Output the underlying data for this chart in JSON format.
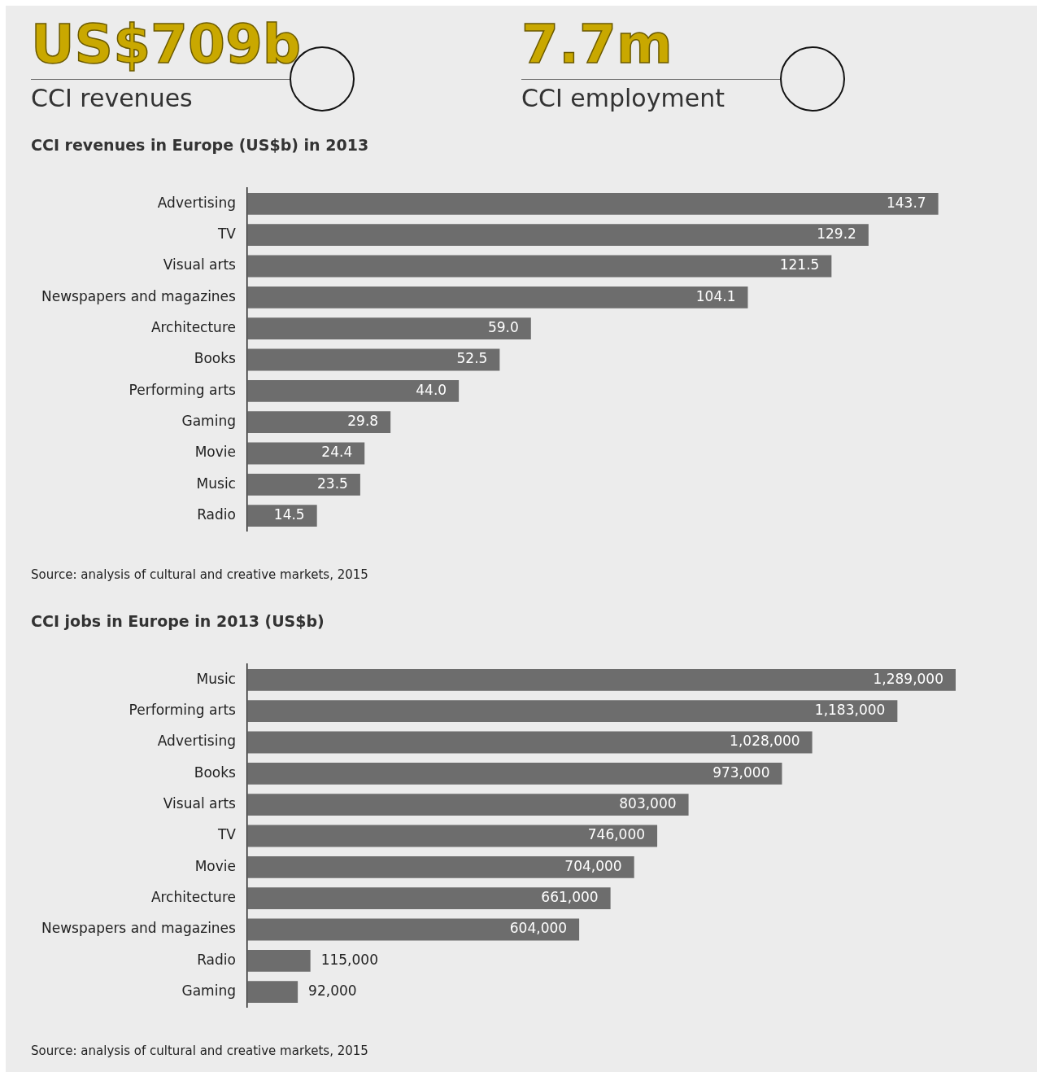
{
  "chart_data": [
    {
      "type": "other",
      "annotations": [
        "US$709b",
        "CCI revenues",
        "7.7m",
        "CCI employment"
      ]
    },
    {
      "type": "bar",
      "orientation": "horizontal",
      "title": "CCI revenues in Europe (US$b) in 2013",
      "categories": [
        "Advertising",
        "TV",
        "Visual arts",
        "Newspapers and magazines",
        "Architecture",
        "Books",
        "Performing arts",
        "Gaming",
        "Movie",
        "Music",
        "Radio"
      ],
      "values": [
        143.7,
        129.2,
        121.5,
        104.1,
        59.0,
        52.5,
        44.0,
        29.8,
        24.4,
        23.5,
        14.5
      ],
      "value_labels": [
        "143.7",
        "129.2",
        "121.5",
        "104.1",
        "59.0",
        "52.5",
        "44.0",
        "29.8",
        "24.4",
        "23.5",
        "14.5"
      ],
      "color": "#6d6d6d",
      "tick_labels": "y",
      "grid": false,
      "legend": false,
      "annotations": [
        "Source: analysis of cultural and creative markets, 2015"
      ]
    },
    {
      "type": "bar",
      "orientation": "horizontal",
      "title": "CCI jobs in Europe in 2013 (US$b)",
      "categories": [
        "Music",
        "Performing arts",
        "Advertising",
        "Books",
        "Visual arts",
        "TV",
        "Movie",
        "Architecture",
        "Newspapers and magazines",
        "Radio",
        "Gaming"
      ],
      "values": [
        1289000,
        1183000,
        1028000,
        973000,
        803000,
        746000,
        704000,
        661000,
        604000,
        115000,
        92000
      ],
      "value_labels": [
        "1,289,000",
        "1,183,000",
        "1,028,000",
        "973,000",
        "803,000",
        "746,000",
        "704,000",
        "661,000",
        "604,000",
        "115,000",
        "92,000"
      ],
      "color": "#6d6d6d",
      "tick_labels": "y",
      "grid": false,
      "legend": false,
      "annotations": [
        "Source: analysis of cultural and creative markets, 2015"
      ]
    }
  ]
}
